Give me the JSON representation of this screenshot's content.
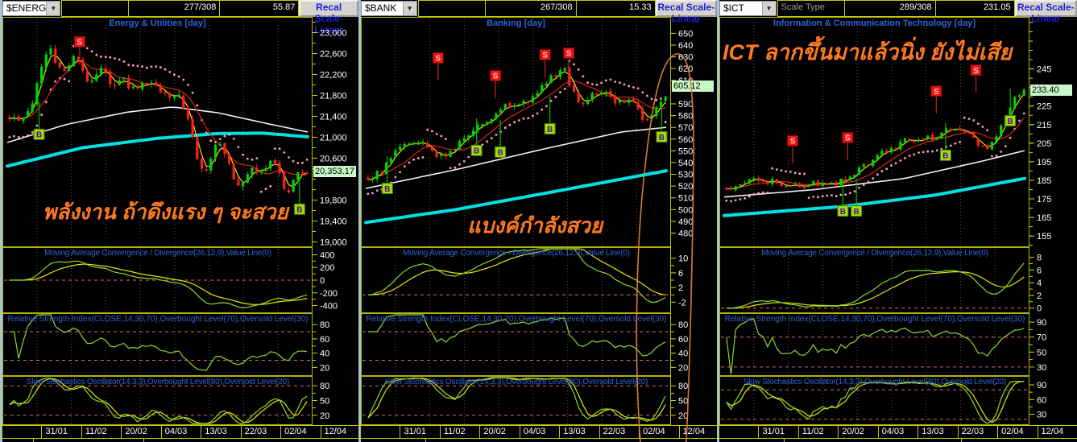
{
  "toolbar": {
    "recal_label": "Recal Scale-Linear"
  },
  "dates": [
    "31/01",
    "11/02",
    "20/02",
    "04/03",
    "13/03",
    "22/03",
    "02/04",
    "12/04"
  ],
  "indicator_labels": {
    "macd": "Moving Average Convergence / Divergence(26,12,9),Value Line(0)",
    "rsi": "Relative Strength Index(CLOSE,14,30,70),Overbought Level(70),Oversold Level(30)",
    "stoch": "Slow Stochastics Oscillator(14,3,3),Overbought Level(80),Oversold Level(20)"
  },
  "colors": {
    "up_candle": "#00d400",
    "down_candle": "#ff1e1e",
    "ma_fast": "#e8e800",
    "ma_mid": "#e02020",
    "ma_slow": "#f0f0f0",
    "ma_long": "#00e0e0",
    "sar_dots": "#ff9eb8",
    "label_blue": "#2f62d8",
    "annotation_orange": "#ff7a1e",
    "axis_yellow": "#d8d800",
    "level_dashed": "#e06868",
    "tag_bg": "#c9f6c9",
    "buy_marker": "#9fe000",
    "sell_marker": "#ee1212",
    "arc_orange": "#e0813c"
  },
  "panels": [
    {
      "symbol": "$ENERG",
      "count": "277/308",
      "last": "55.87",
      "scale_type": "",
      "title": "Energy & Utilities [day]",
      "annotation": "พลังงาน ถ้าดึงแรง ๆ จะสวย",
      "price_tag": "20,353.17",
      "price_tag_value": 20353.17,
      "axis": {
        "range": [
          18900,
          23300
        ],
        "minor": 200,
        "labels": [
          "23,000",
          "22,600",
          "22,200",
          "21,800",
          "21,400",
          "21,000",
          "20,600",
          "19,800",
          "19,400",
          "19,000"
        ],
        "values": [
          23000,
          22600,
          22200,
          21800,
          21400,
          21000,
          20600,
          19800,
          19400,
          19000
        ]
      },
      "seed": 7,
      "vol": 260,
      "wick": 130,
      "sar_offset": 350,
      "series": {
        "close_trend": [
          [
            0,
            21400
          ],
          [
            0.04,
            21300
          ],
          [
            0.08,
            21700
          ],
          [
            0.13,
            22800
          ],
          [
            0.16,
            22400
          ],
          [
            0.19,
            22300
          ],
          [
            0.22,
            22600
          ],
          [
            0.25,
            22200
          ],
          [
            0.28,
            22000
          ],
          [
            0.31,
            22400
          ],
          [
            0.34,
            22000
          ],
          [
            0.38,
            22100
          ],
          [
            0.42,
            21900
          ],
          [
            0.46,
            22050
          ],
          [
            0.5,
            21900
          ],
          [
            0.54,
            21800
          ],
          [
            0.57,
            21750
          ],
          [
            0.6,
            21400
          ],
          [
            0.63,
            20600
          ],
          [
            0.66,
            20300
          ],
          [
            0.69,
            20900
          ],
          [
            0.72,
            20800
          ],
          [
            0.75,
            20200
          ],
          [
            0.78,
            20050
          ],
          [
            0.81,
            20450
          ],
          [
            0.84,
            20350
          ],
          [
            0.87,
            20500
          ],
          [
            0.9,
            20550
          ],
          [
            0.93,
            19900
          ],
          [
            0.96,
            20250
          ],
          [
            1,
            20350
          ]
        ],
        "cyan_ma": [
          [
            0,
            20450
          ],
          [
            0.25,
            20800
          ],
          [
            0.5,
            20980
          ],
          [
            0.7,
            21070
          ],
          [
            0.85,
            21080
          ],
          [
            1,
            21010
          ]
        ],
        "white_ma": [
          [
            0,
            20900
          ],
          [
            0.2,
            21250
          ],
          [
            0.4,
            21480
          ],
          [
            0.55,
            21580
          ],
          [
            0.7,
            21470
          ],
          [
            0.85,
            21280
          ],
          [
            1,
            21100
          ]
        ]
      },
      "markers": [
        {
          "t": "S",
          "fx": 0.241,
          "fy": 0.108
        },
        {
          "t": "B",
          "fx": 0.106,
          "fy": 0.51
        },
        {
          "t": "B",
          "fx": 0.973,
          "fy": 0.835
        }
      ],
      "macd": {
        "ticks": [
          400,
          200,
          0,
          -200,
          -400
        ],
        "range": [
          -520,
          520
        ]
      },
      "rsi": {
        "ticks": [
          80,
          60,
          40,
          20
        ],
        "range": [
          8,
          96
        ],
        "levels": [
          70,
          30
        ]
      },
      "stoch": {
        "ticks": [
          80,
          50,
          20
        ],
        "range": [
          0,
          100
        ],
        "levels": [
          80,
          20
        ]
      }
    },
    {
      "symbol": "$BANK",
      "count": "267/308",
      "last": "15.33",
      "scale_type": "",
      "title": "Banking [day]",
      "annotation": "แบงค์กำลังสวย",
      "price_tag": "605.12",
      "price_tag_value": 605.12,
      "axis": {
        "range": [
          468,
          664
        ],
        "minor": 0,
        "labels": [
          "650",
          "640",
          "630",
          "620",
          "610",
          "590",
          "580",
          "570",
          "560",
          "550",
          "540",
          "530",
          "520",
          "510",
          "500",
          "490",
          "480"
        ],
        "values": [
          650,
          640,
          630,
          620,
          610,
          590,
          580,
          570,
          560,
          550,
          540,
          530,
          520,
          510,
          500,
          490,
          480
        ]
      },
      "seed": 11,
      "vol": 13,
      "wick": 5,
      "sar_offset": 12,
      "series": {
        "close_trend": [
          [
            0,
            528
          ],
          [
            0.04,
            532
          ],
          [
            0.08,
            545
          ],
          [
            0.12,
            556
          ],
          [
            0.16,
            560
          ],
          [
            0.2,
            556
          ],
          [
            0.23,
            548
          ],
          [
            0.26,
            543
          ],
          [
            0.3,
            556
          ],
          [
            0.34,
            566
          ],
          [
            0.38,
            572
          ],
          [
            0.42,
            576
          ],
          [
            0.45,
            585
          ],
          [
            0.48,
            590
          ],
          [
            0.51,
            588
          ],
          [
            0.54,
            595
          ],
          [
            0.57,
            600
          ],
          [
            0.6,
            606
          ],
          [
            0.63,
            616
          ],
          [
            0.66,
            620
          ],
          [
            0.69,
            600
          ],
          [
            0.72,
            590
          ],
          [
            0.75,
            596
          ],
          [
            0.78,
            600
          ],
          [
            0.81,
            597
          ],
          [
            0.84,
            592
          ],
          [
            0.87,
            592
          ],
          [
            0.9,
            588
          ],
          [
            0.93,
            574
          ],
          [
            0.96,
            585
          ],
          [
            1,
            598
          ]
        ],
        "cyan_ma": [
          [
            0,
            489
          ],
          [
            0.3,
            500
          ],
          [
            0.6,
            514
          ],
          [
            1,
            533
          ]
        ],
        "white_ma": [
          [
            0,
            518
          ],
          [
            0.3,
            534
          ],
          [
            0.6,
            552
          ],
          [
            0.85,
            566
          ],
          [
            1,
            570
          ]
        ]
      },
      "markers": [
        {
          "t": "S",
          "fx": 0.241,
          "fy": 0.178
        },
        {
          "t": "S",
          "fx": 0.432,
          "fy": 0.255
        },
        {
          "t": "S",
          "fx": 0.597,
          "fy": 0.164
        },
        {
          "t": "S",
          "fx": 0.676,
          "fy": 0.157
        },
        {
          "t": "B",
          "fx": 0.072,
          "fy": 0.745
        },
        {
          "t": "B",
          "fx": 0.369,
          "fy": 0.58
        },
        {
          "t": "B",
          "fx": 0.448,
          "fy": 0.587
        },
        {
          "t": "B",
          "fx": 0.613,
          "fy": 0.486
        },
        {
          "t": "B",
          "fx": 0.985,
          "fy": 0.521
        }
      ],
      "macd": {
        "ticks": [
          10,
          6,
          2,
          -2
        ],
        "range": [
          -5,
          13
        ]
      },
      "rsi": {
        "ticks": [
          80,
          60,
          40,
          20
        ],
        "range": [
          8,
          96
        ],
        "levels": [
          70,
          30
        ]
      },
      "stoch": {
        "ticks": [
          80,
          50,
          20
        ],
        "range": [
          0,
          100
        ],
        "levels": [
          80,
          20
        ]
      }
    },
    {
      "symbol": "$ICT",
      "count": "289/308",
      "last": "231.05",
      "scale_type": "Scale Type",
      "title": "Information & Communication Technology [day]",
      "annotation": "ICT ลากขึ้นมาแล้วนิ่ง ยังไม่เสีย",
      "price_tag": "233.40",
      "price_tag_value": 233.4,
      "axis": {
        "range": [
          149,
          273
        ],
        "minor": 5,
        "labels": [
          "245",
          "235",
          "225",
          "215",
          "205",
          "195",
          "185",
          "175",
          "165",
          "155"
        ],
        "values": [
          245,
          235,
          225,
          215,
          205,
          195,
          185,
          175,
          165,
          155
        ]
      },
      "seed": 23,
      "vol": 7,
      "wick": 2.5,
      "sar_offset": 6.5,
      "series": {
        "close_trend": [
          [
            0,
            181
          ],
          [
            0.05,
            183
          ],
          [
            0.09,
            187
          ],
          [
            0.13,
            185
          ],
          [
            0.17,
            184
          ],
          [
            0.21,
            183
          ],
          [
            0.25,
            182
          ],
          [
            0.29,
            183
          ],
          [
            0.33,
            183
          ],
          [
            0.37,
            184
          ],
          [
            0.41,
            186
          ],
          [
            0.45,
            191
          ],
          [
            0.49,
            196
          ],
          [
            0.52,
            199
          ],
          [
            0.55,
            202
          ],
          [
            0.58,
            204
          ],
          [
            0.61,
            207
          ],
          [
            0.64,
            206
          ],
          [
            0.67,
            208
          ],
          [
            0.7,
            206
          ],
          [
            0.73,
            211
          ],
          [
            0.76,
            214
          ],
          [
            0.79,
            213
          ],
          [
            0.82,
            210
          ],
          [
            0.85,
            204
          ],
          [
            0.88,
            203
          ],
          [
            0.91,
            209
          ],
          [
            0.94,
            220
          ],
          [
            0.97,
            230
          ],
          [
            1,
            234
          ]
        ],
        "cyan_ma": [
          [
            0,
            166
          ],
          [
            0.4,
            171
          ],
          [
            0.7,
            177
          ],
          [
            1,
            186
          ]
        ],
        "white_ma": [
          [
            0,
            176
          ],
          [
            0.3,
            180
          ],
          [
            0.6,
            186
          ],
          [
            0.85,
            195
          ],
          [
            1,
            201
          ]
        ]
      },
      "markers": [
        {
          "t": "S",
          "fx": 0.228,
          "fy": 0.538
        },
        {
          "t": "S",
          "fx": 0.411,
          "fy": 0.524
        },
        {
          "t": "S",
          "fx": 0.706,
          "fy": 0.322
        },
        {
          "t": "S",
          "fx": 0.838,
          "fy": 0.231
        },
        {
          "t": "B",
          "fx": 0.395,
          "fy": 0.843
        },
        {
          "t": "B",
          "fx": 0.44,
          "fy": 0.843
        },
        {
          "t": "B",
          "fx": 0.737,
          "fy": 0.601
        },
        {
          "t": "B",
          "fx": 0.952,
          "fy": 0.451
        }
      ],
      "macd": {
        "ticks": [
          8,
          6,
          4,
          2,
          0
        ],
        "range": [
          -0.8,
          9.6
        ]
      },
      "rsi": {
        "ticks": [
          90,
          70,
          50,
          30
        ],
        "range": [
          18,
          102
        ],
        "levels": [
          70,
          30
        ]
      },
      "stoch": {
        "ticks": [
          90,
          60,
          30
        ],
        "range": [
          8,
          108
        ],
        "levels": [
          80,
          20
        ]
      }
    }
  ]
}
